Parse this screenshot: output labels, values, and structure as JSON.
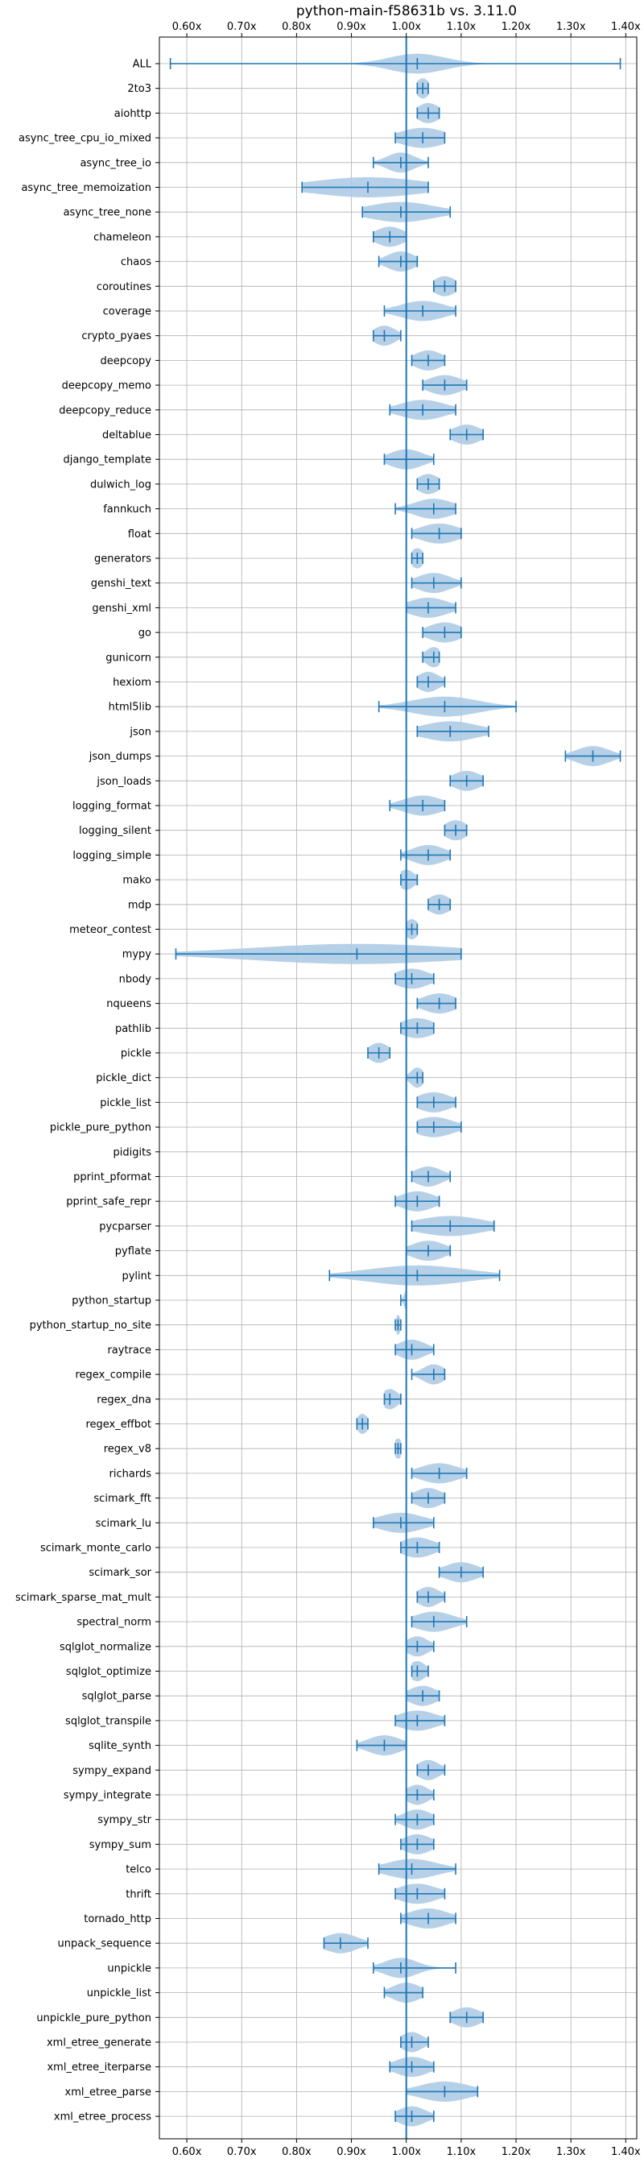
{
  "chart_data": {
    "type": "violin",
    "title": "python-main-f58631b vs. 3.11.0",
    "orientation": "horizontal",
    "xlim": [
      0.55,
      1.42
    ],
    "xticks": [
      0.6,
      0.7,
      0.8,
      0.9,
      1.0,
      1.1,
      1.2,
      1.3,
      1.4
    ],
    "xtick_labels": [
      "0.60x",
      "0.70x",
      "0.80x",
      "0.90x",
      "1.00x",
      "1.10x",
      "1.20x",
      "1.30x",
      "1.40x"
    ],
    "xtick_positions": [
      "top",
      "bottom"
    ],
    "reference_line": 1.0,
    "grid": true,
    "colors": {
      "violin": "#aecbe6",
      "whisker": "#1f77b4",
      "grid": "#b0b0b0"
    },
    "series": [
      {
        "label": "ALL",
        "min": 0.57,
        "max": 1.39,
        "median": 1.02,
        "spread": 0.05
      },
      {
        "label": "2to3",
        "min": 1.02,
        "max": 1.04,
        "median": 1.03,
        "spread": 0.012
      },
      {
        "label": "aiohttp",
        "min": 1.02,
        "max": 1.06,
        "median": 1.04,
        "spread": 0.02
      },
      {
        "label": "async_tree_cpu_io_mixed",
        "min": 0.98,
        "max": 1.07,
        "median": 1.03,
        "spread": 0.04
      },
      {
        "label": "async_tree_io",
        "min": 0.94,
        "max": 1.04,
        "median": 0.99,
        "spread": 0.025
      },
      {
        "label": "async_tree_memoization",
        "min": 0.81,
        "max": 1.04,
        "median": 0.93,
        "spread": 0.1
      },
      {
        "label": "async_tree_none",
        "min": 0.92,
        "max": 1.08,
        "median": 0.99,
        "spread": 0.06
      },
      {
        "label": "chameleon",
        "min": 0.94,
        "max": 1.0,
        "median": 0.97,
        "spread": 0.025
      },
      {
        "label": "chaos",
        "min": 0.95,
        "max": 1.02,
        "median": 0.99,
        "spread": 0.025
      },
      {
        "label": "coroutines",
        "min": 1.05,
        "max": 1.09,
        "median": 1.07,
        "spread": 0.02
      },
      {
        "label": "coverage",
        "min": 0.96,
        "max": 1.09,
        "median": 1.03,
        "spread": 0.04
      },
      {
        "label": "crypto_pyaes",
        "min": 0.94,
        "max": 0.99,
        "median": 0.96,
        "spread": 0.02
      },
      {
        "label": "deepcopy",
        "min": 1.01,
        "max": 1.07,
        "median": 1.04,
        "spread": 0.025
      },
      {
        "label": "deepcopy_memo",
        "min": 1.03,
        "max": 1.11,
        "median": 1.07,
        "spread": 0.03
      },
      {
        "label": "deepcopy_reduce",
        "min": 0.97,
        "max": 1.09,
        "median": 1.03,
        "spread": 0.04
      },
      {
        "label": "deltablue",
        "min": 1.08,
        "max": 1.14,
        "median": 1.11,
        "spread": 0.025
      },
      {
        "label": "django_template",
        "min": 0.96,
        "max": 1.05,
        "median": 1.0,
        "spread": 0.03
      },
      {
        "label": "dulwich_log",
        "min": 1.02,
        "max": 1.06,
        "median": 1.04,
        "spread": 0.02
      },
      {
        "label": "fannkuch",
        "min": 0.98,
        "max": 1.09,
        "median": 1.05,
        "spread": 0.035
      },
      {
        "label": "float",
        "min": 1.01,
        "max": 1.1,
        "median": 1.06,
        "spread": 0.035
      },
      {
        "label": "generators",
        "min": 1.01,
        "max": 1.03,
        "median": 1.02,
        "spread": 0.012
      },
      {
        "label": "genshi_text",
        "min": 1.01,
        "max": 1.1,
        "median": 1.05,
        "spread": 0.03
      },
      {
        "label": "genshi_xml",
        "min": 1.0,
        "max": 1.09,
        "median": 1.04,
        "spread": 0.035
      },
      {
        "label": "go",
        "min": 1.03,
        "max": 1.1,
        "median": 1.07,
        "spread": 0.03
      },
      {
        "label": "gunicorn",
        "min": 1.03,
        "max": 1.06,
        "median": 1.05,
        "spread": 0.015
      },
      {
        "label": "hexiom",
        "min": 1.02,
        "max": 1.07,
        "median": 1.04,
        "spread": 0.02
      },
      {
        "label": "html5lib",
        "min": 0.95,
        "max": 1.2,
        "median": 1.07,
        "spread": 0.06
      },
      {
        "label": "json",
        "min": 1.02,
        "max": 1.15,
        "median": 1.08,
        "spread": 0.05
      },
      {
        "label": "json_dumps",
        "min": 1.29,
        "max": 1.39,
        "median": 1.34,
        "spread": 0.03
      },
      {
        "label": "json_loads",
        "min": 1.08,
        "max": 1.14,
        "median": 1.11,
        "spread": 0.025
      },
      {
        "label": "logging_format",
        "min": 0.97,
        "max": 1.07,
        "median": 1.03,
        "spread": 0.035
      },
      {
        "label": "logging_silent",
        "min": 1.07,
        "max": 1.11,
        "median": 1.09,
        "spread": 0.02
      },
      {
        "label": "logging_simple",
        "min": 0.99,
        "max": 1.08,
        "median": 1.04,
        "spread": 0.03
      },
      {
        "label": "mako",
        "min": 0.99,
        "max": 1.02,
        "median": 1.0,
        "spread": 0.015
      },
      {
        "label": "mdp",
        "min": 1.04,
        "max": 1.08,
        "median": 1.06,
        "spread": 0.02
      },
      {
        "label": "meteor_contest",
        "min": 1.0,
        "max": 1.02,
        "median": 1.01,
        "spread": 0.012
      },
      {
        "label": "mypy",
        "min": 0.58,
        "max": 1.1,
        "median": 0.91,
        "spread": 0.19
      },
      {
        "label": "nbody",
        "min": 0.98,
        "max": 1.05,
        "median": 1.01,
        "spread": 0.03
      },
      {
        "label": "nqueens",
        "min": 1.02,
        "max": 1.09,
        "median": 1.06,
        "spread": 0.03
      },
      {
        "label": "pathlib",
        "min": 0.99,
        "max": 1.05,
        "median": 1.02,
        "spread": 0.03
      },
      {
        "label": "pickle",
        "min": 0.93,
        "max": 0.97,
        "median": 0.95,
        "spread": 0.018
      },
      {
        "label": "pickle_dict",
        "min": 1.0,
        "max": 1.03,
        "median": 1.02,
        "spread": 0.012
      },
      {
        "label": "pickle_list",
        "min": 1.02,
        "max": 1.09,
        "median": 1.05,
        "spread": 0.03
      },
      {
        "label": "pickle_pure_python",
        "min": 1.02,
        "max": 1.1,
        "median": 1.05,
        "spread": 0.035
      },
      {
        "label": "pidigits",
        "min": 1.0,
        "max": 1.0,
        "median": 1.0,
        "spread": 0.004
      },
      {
        "label": "pprint_pformat",
        "min": 1.01,
        "max": 1.08,
        "median": 1.04,
        "spread": 0.025
      },
      {
        "label": "pprint_safe_repr",
        "min": 0.98,
        "max": 1.06,
        "median": 1.02,
        "spread": 0.03
      },
      {
        "label": "pycparser",
        "min": 1.01,
        "max": 1.16,
        "median": 1.08,
        "spread": 0.06
      },
      {
        "label": "pyflate",
        "min": 1.0,
        "max": 1.08,
        "median": 1.04,
        "spread": 0.03
      },
      {
        "label": "pylint",
        "min": 0.86,
        "max": 1.17,
        "median": 1.02,
        "spread": 0.09
      },
      {
        "label": "python_startup",
        "min": 0.99,
        "max": 1.0,
        "median": 1.0,
        "spread": 0.004
      },
      {
        "label": "python_startup_no_site",
        "min": 0.98,
        "max": 0.99,
        "median": 0.985,
        "spread": 0.004
      },
      {
        "label": "raytrace",
        "min": 0.98,
        "max": 1.05,
        "median": 1.01,
        "spread": 0.025
      },
      {
        "label": "regex_compile",
        "min": 1.01,
        "max": 1.07,
        "median": 1.05,
        "spread": 0.02
      },
      {
        "label": "regex_dna",
        "min": 0.96,
        "max": 0.99,
        "median": 0.97,
        "spread": 0.015
      },
      {
        "label": "regex_effbot",
        "min": 0.91,
        "max": 0.93,
        "median": 0.92,
        "spread": 0.01
      },
      {
        "label": "regex_v8",
        "min": 0.98,
        "max": 0.99,
        "median": 0.985,
        "spread": 0.008
      },
      {
        "label": "richards",
        "min": 1.01,
        "max": 1.11,
        "median": 1.06,
        "spread": 0.035
      },
      {
        "label": "scimark_fft",
        "min": 1.01,
        "max": 1.07,
        "median": 1.04,
        "spread": 0.025
      },
      {
        "label": "scimark_lu",
        "min": 0.94,
        "max": 1.05,
        "median": 0.99,
        "spread": 0.04
      },
      {
        "label": "scimark_monte_carlo",
        "min": 0.99,
        "max": 1.06,
        "median": 1.02,
        "spread": 0.03
      },
      {
        "label": "scimark_sor",
        "min": 1.06,
        "max": 1.14,
        "median": 1.1,
        "spread": 0.03
      },
      {
        "label": "scimark_sparse_mat_mult",
        "min": 1.02,
        "max": 1.07,
        "median": 1.04,
        "spread": 0.02
      },
      {
        "label": "spectral_norm",
        "min": 1.01,
        "max": 1.11,
        "median": 1.05,
        "spread": 0.035
      },
      {
        "label": "sqlglot_normalize",
        "min": 1.0,
        "max": 1.05,
        "median": 1.02,
        "spread": 0.02
      },
      {
        "label": "sqlglot_optimize",
        "min": 1.01,
        "max": 1.04,
        "median": 1.02,
        "spread": 0.015
      },
      {
        "label": "sqlglot_parse",
        "min": 1.0,
        "max": 1.06,
        "median": 1.03,
        "spread": 0.025
      },
      {
        "label": "sqlglot_transpile",
        "min": 0.98,
        "max": 1.07,
        "median": 1.02,
        "spread": 0.035
      },
      {
        "label": "sqlite_synth",
        "min": 0.91,
        "max": 1.0,
        "median": 0.96,
        "spread": 0.03
      },
      {
        "label": "sympy_expand",
        "min": 1.02,
        "max": 1.07,
        "median": 1.04,
        "spread": 0.02
      },
      {
        "label": "sympy_integrate",
        "min": 1.0,
        "max": 1.05,
        "median": 1.02,
        "spread": 0.02
      },
      {
        "label": "sympy_str",
        "min": 0.98,
        "max": 1.05,
        "median": 1.02,
        "spread": 0.025
      },
      {
        "label": "sympy_sum",
        "min": 0.99,
        "max": 1.05,
        "median": 1.02,
        "spread": 0.025
      },
      {
        "label": "telco",
        "min": 0.95,
        "max": 1.09,
        "median": 1.01,
        "spread": 0.045
      },
      {
        "label": "thrift",
        "min": 0.98,
        "max": 1.07,
        "median": 1.02,
        "spread": 0.035
      },
      {
        "label": "tornado_http",
        "min": 0.99,
        "max": 1.09,
        "median": 1.04,
        "spread": 0.035
      },
      {
        "label": "unpack_sequence",
        "min": 0.85,
        "max": 0.93,
        "median": 0.88,
        "spread": 0.03
      },
      {
        "label": "unpickle",
        "min": 0.94,
        "max": 1.09,
        "median": 0.99,
        "spread": 0.03
      },
      {
        "label": "unpickle_list",
        "min": 0.96,
        "max": 1.03,
        "median": 1.0,
        "spread": 0.025
      },
      {
        "label": "unpickle_pure_python",
        "min": 1.08,
        "max": 1.14,
        "median": 1.11,
        "spread": 0.025
      },
      {
        "label": "xml_etree_generate",
        "min": 0.99,
        "max": 1.04,
        "median": 1.01,
        "spread": 0.02
      },
      {
        "label": "xml_etree_iterparse",
        "min": 0.97,
        "max": 1.05,
        "median": 1.01,
        "spread": 0.03
      },
      {
        "label": "xml_etree_parse",
        "min": 1.0,
        "max": 1.13,
        "median": 1.07,
        "spread": 0.045
      },
      {
        "label": "xml_etree_process",
        "min": 0.98,
        "max": 1.05,
        "median": 1.01,
        "spread": 0.025
      }
    ]
  }
}
